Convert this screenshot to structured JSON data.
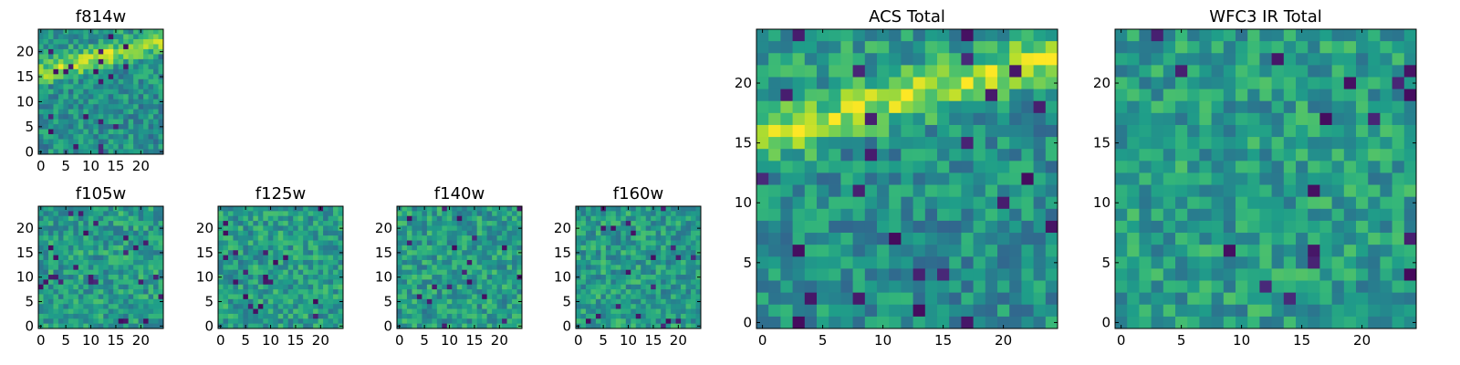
{
  "chart_data": [
    {
      "type": "heatmap",
      "title": "f814w",
      "grid_size": 25,
      "xticks": [
        "0",
        "5",
        "10",
        "15",
        "20"
      ],
      "yticks": [
        "0",
        "5",
        "10",
        "15",
        "20"
      ],
      "colormap": "viridis",
      "feature": "band",
      "seed": 11
    },
    {
      "type": "heatmap",
      "title": "f105w",
      "grid_size": 25,
      "xticks": [
        "0",
        "5",
        "10",
        "15",
        "20"
      ],
      "yticks": [
        "0",
        "5",
        "10",
        "15",
        "20"
      ],
      "colormap": "viridis",
      "feature": "noise",
      "seed": 23
    },
    {
      "type": "heatmap",
      "title": "f125w",
      "grid_size": 25,
      "xticks": [
        "0",
        "5",
        "10",
        "15",
        "20"
      ],
      "yticks": [
        "0",
        "5",
        "10",
        "15",
        "20"
      ],
      "colormap": "viridis",
      "feature": "noise",
      "seed": 37
    },
    {
      "type": "heatmap",
      "title": "f140w",
      "grid_size": 25,
      "xticks": [
        "0",
        "5",
        "10",
        "15",
        "20"
      ],
      "yticks": [
        "0",
        "5",
        "10",
        "15",
        "20"
      ],
      "colormap": "viridis",
      "feature": "noise",
      "seed": 41
    },
    {
      "type": "heatmap",
      "title": "f160w",
      "grid_size": 25,
      "xticks": [
        "0",
        "5",
        "10",
        "15",
        "20"
      ],
      "yticks": [
        "0",
        "5",
        "10",
        "15",
        "20"
      ],
      "colormap": "viridis",
      "feature": "noise",
      "seed": 53
    },
    {
      "type": "heatmap",
      "title": "ACS Total",
      "grid_size": 25,
      "xticks": [
        "0",
        "5",
        "10",
        "15",
        "20"
      ],
      "yticks": [
        "0",
        "5",
        "10",
        "15",
        "20"
      ],
      "colormap": "viridis",
      "feature": "band",
      "seed": 67
    },
    {
      "type": "heatmap",
      "title": "WFC3 IR Total",
      "grid_size": 25,
      "xticks": [
        "0",
        "5",
        "10",
        "15",
        "20"
      ],
      "yticks": [
        "0",
        "5",
        "10",
        "15",
        "20"
      ],
      "colormap": "viridis",
      "feature": "noise",
      "seed": 79
    }
  ]
}
